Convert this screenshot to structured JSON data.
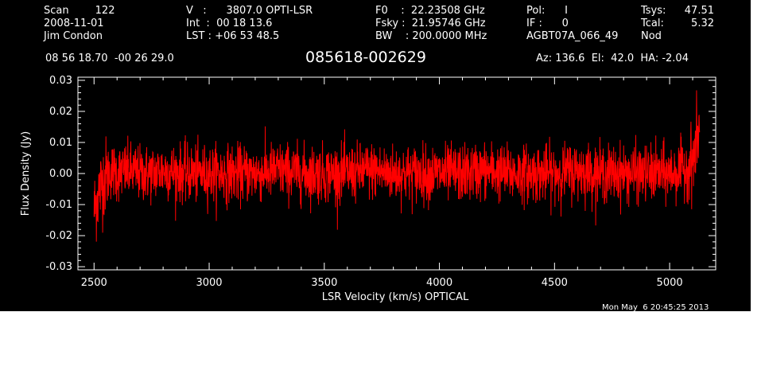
{
  "header": {
    "col1": [
      "Scan        122",
      "2008-11-01",
      "Jim Condon"
    ],
    "col2": [
      "V   :      3807.0 OPTI-LSR",
      "Int  :  00 18 13.6",
      "LST : +06 53 48.5"
    ],
    "col3": [
      "F0    :  22.23508 GHz",
      "Fsky :  21.95746 GHz",
      "BW    : 200.0000 MHz"
    ],
    "col4": [
      "Pol:      I",
      "IF :      0",
      "AGBT07A_066_49"
    ],
    "col5_labels": [
      "Tsys:",
      "Tcal:",
      "Nod"
    ],
    "col5_values": [
      "47.51",
      "5.32",
      ""
    ],
    "coords": "08 56 18.70  -00 26 29.0",
    "source": "085618-002629",
    "pointing": "Az: 136.6  El:  42.0  HA: -2.04",
    "timestamp": "Mon May  6 20:45:25 2013"
  },
  "colors": {
    "background": "#000000",
    "foreground": "#ffffff",
    "trace": "#ff0000"
  },
  "chart_data": {
    "type": "line",
    "title": "085618-002629",
    "xlabel": "LSR Velocity (km/s) OPTICAL",
    "ylabel": "Flux Density (Jy)",
    "xlim": [
      2430,
      5200
    ],
    "ylim": [
      -0.031,
      0.031
    ],
    "xticks": [
      2500,
      3000,
      3500,
      4000,
      4500,
      5000
    ],
    "xtick_labels": [
      "2500",
      "3000",
      "3500",
      "4000",
      "4500",
      "5000"
    ],
    "yticks": [
      0.03,
      0.02,
      0.01,
      0.0,
      -0.01,
      -0.02,
      -0.03
    ],
    "ytick_labels": [
      "0.03",
      "0.02",
      "0.01",
      "0.00",
      "-0.01",
      "-0.02",
      "-0.03"
    ],
    "grid": false,
    "series": [
      {
        "x": [
          2500,
          2520,
          2540,
          2560,
          2580,
          2600,
          2650,
          2700,
          2750,
          2800,
          2900,
          3000,
          3100,
          3200,
          3300,
          3400,
          3500,
          3600,
          3700,
          3800,
          3900,
          4000,
          4100,
          4200,
          4300,
          4400,
          4500,
          4600,
          4700,
          4800,
          4900,
          5000,
          5050,
          5080,
          5100,
          5110,
          5120,
          5130
        ],
        "y": [
          -0.012,
          -0.006,
          -0.002,
          0.0,
          0.001,
          0.0,
          0.001,
          0.0,
          0.0,
          0.001,
          0.0,
          0.0,
          0.0,
          0.0,
          0.001,
          0.0,
          0.0,
          0.0,
          0.001,
          0.0,
          0.0,
          0.0,
          0.0,
          0.001,
          0.0,
          0.0,
          0.0,
          0.001,
          0.0,
          0.0,
          0.0,
          0.0,
          0.001,
          0.002,
          0.004,
          0.007,
          0.011,
          0.015
        ],
        "noise_rms": 0.0045
      }
    ]
  }
}
